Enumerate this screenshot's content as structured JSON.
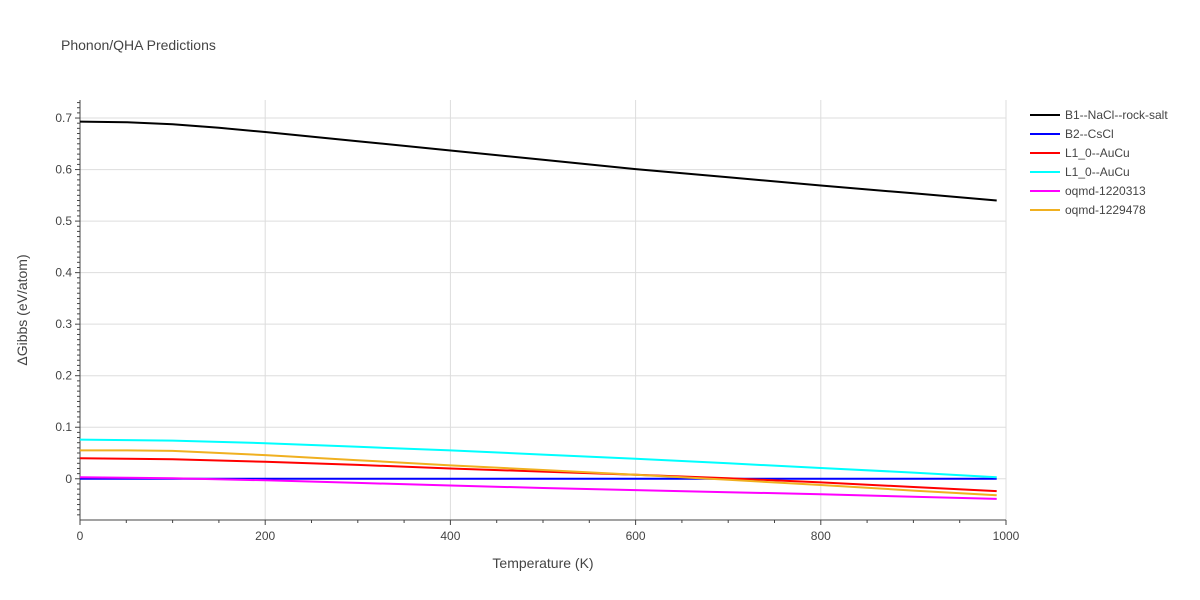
{
  "chart_data": {
    "type": "line",
    "title": "Phonon/QHA Predictions",
    "xlabel": "Temperature (K)",
    "ylabel": "ΔGibbs (eV/atom)",
    "xlim": [
      0,
      1000
    ],
    "ylim": [
      -0.08,
      0.735
    ],
    "x_ticks": [
      0,
      200,
      400,
      600,
      800,
      1000
    ],
    "y_ticks": [
      0,
      0.1,
      0.2,
      0.3,
      0.4,
      0.5,
      0.6,
      0.7
    ],
    "x_tick_labels": [
      "0",
      "200",
      "400",
      "600",
      "800",
      "1000"
    ],
    "y_tick_labels": [
      "0",
      "0.1",
      "0.2",
      "0.3",
      "0.4",
      "0.5",
      "0.6",
      "0.7"
    ],
    "grid": true,
    "legend_position": "top-right",
    "series": [
      {
        "name": "B1--NaCl--rock-salt",
        "color": "#000000",
        "x": [
          0,
          50,
          100,
          150,
          200,
          300,
          400,
          500,
          600,
          700,
          800,
          900,
          990
        ],
        "y": [
          0.693,
          0.692,
          0.688,
          0.681,
          0.673,
          0.655,
          0.637,
          0.619,
          0.601,
          0.585,
          0.569,
          0.554,
          0.54
        ]
      },
      {
        "name": "B2--CsCl",
        "color": "#0000ff",
        "x": [
          0,
          100,
          200,
          300,
          400,
          500,
          600,
          700,
          800,
          900,
          990
        ],
        "y": [
          0.0,
          0.0,
          0.0,
          0.0,
          0.0,
          0.0,
          0.0,
          0.0,
          0.0,
          0.0,
          0.0
        ]
      },
      {
        "name": "L1_0--AuCu",
        "color": "#ff0000",
        "x": [
          0,
          50,
          100,
          200,
          300,
          400,
          500,
          600,
          700,
          800,
          900,
          990
        ],
        "y": [
          0.04,
          0.039,
          0.038,
          0.033,
          0.027,
          0.02,
          0.014,
          0.008,
          0.001,
          -0.007,
          -0.016,
          -0.024
        ]
      },
      {
        "name": "L1_0--AuCu",
        "color": "#00ffff",
        "x": [
          0,
          50,
          100,
          200,
          300,
          400,
          500,
          600,
          700,
          800,
          900,
          990
        ],
        "y": [
          0.076,
          0.075,
          0.074,
          0.069,
          0.062,
          0.055,
          0.047,
          0.039,
          0.03,
          0.021,
          0.012,
          0.003
        ]
      },
      {
        "name": "oqmd-1220313",
        "color": "#ff00ff",
        "x": [
          0,
          50,
          100,
          200,
          300,
          400,
          500,
          600,
          700,
          800,
          900,
          990
        ],
        "y": [
          0.003,
          0.002,
          0.001,
          -0.003,
          -0.008,
          -0.013,
          -0.018,
          -0.022,
          -0.026,
          -0.03,
          -0.035,
          -0.039
        ]
      },
      {
        "name": "oqmd-1229478",
        "color": "#f0b020",
        "x": [
          0,
          50,
          100,
          200,
          300,
          400,
          500,
          600,
          700,
          800,
          900,
          990
        ],
        "y": [
          0.055,
          0.055,
          0.054,
          0.046,
          0.036,
          0.026,
          0.017,
          0.008,
          -0.002,
          -0.012,
          -0.023,
          -0.032
        ]
      }
    ]
  }
}
